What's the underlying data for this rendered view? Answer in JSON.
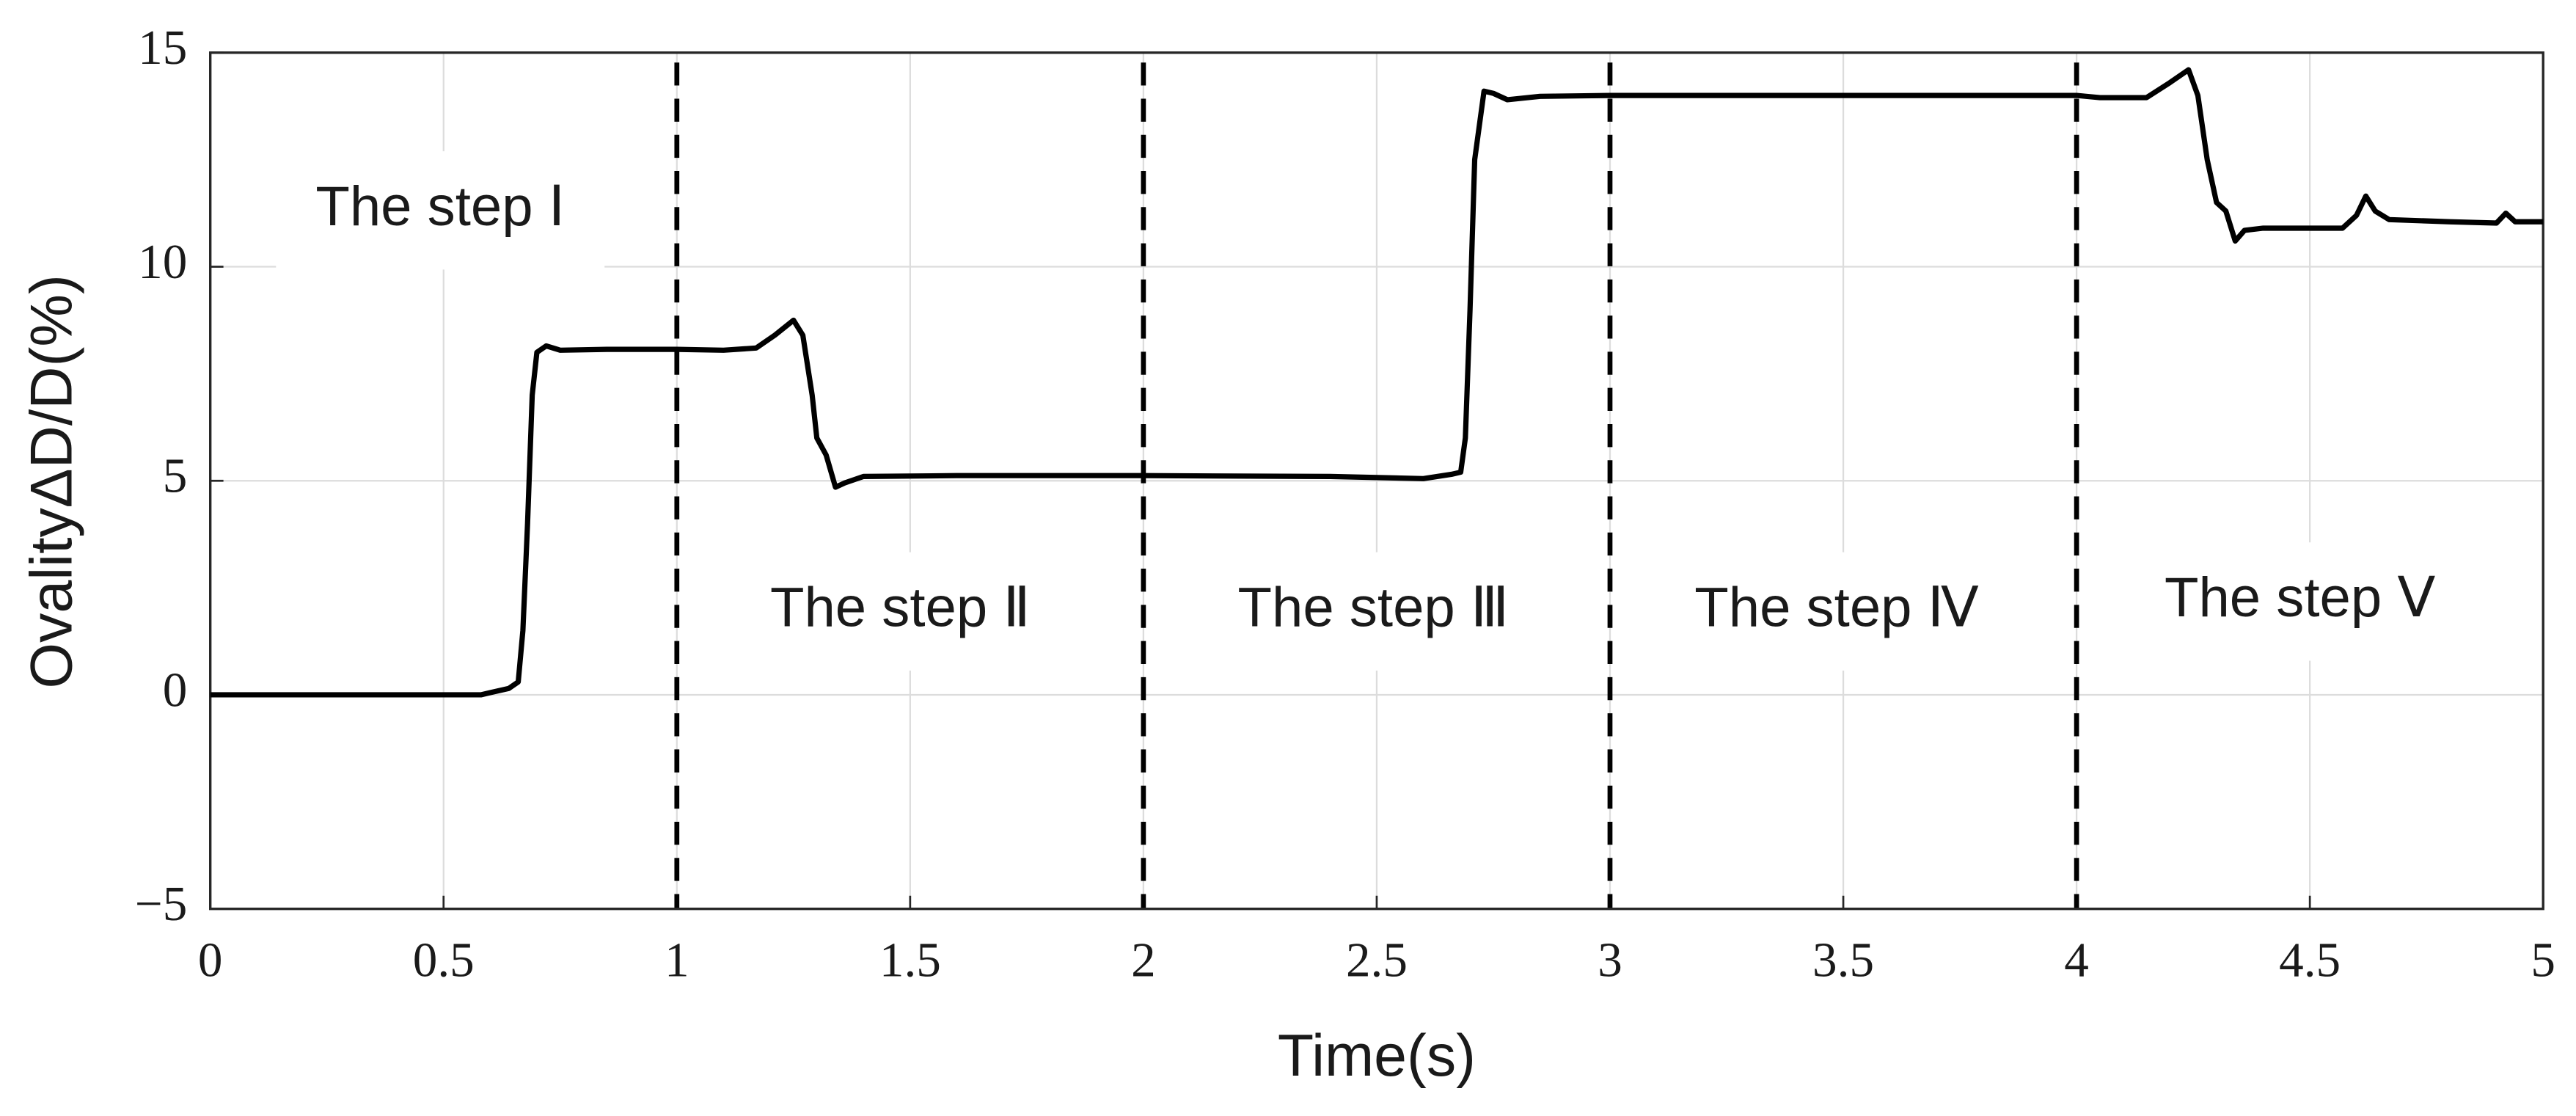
{
  "chart_data": {
    "type": "line",
    "xlabel": "Time(s)",
    "ylabel": "OvalityΔD/D(%)",
    "xlim": [
      0,
      5
    ],
    "ylim": [
      -5,
      15
    ],
    "xticks": [
      0,
      0.5,
      1,
      1.5,
      2,
      2.5,
      3,
      3.5,
      4,
      4.5,
      5
    ],
    "yticks": [
      {
        "value": -5,
        "label": "−5"
      },
      0,
      5,
      10,
      15
    ],
    "grid": true,
    "vlines": [
      1,
      2,
      3,
      4
    ],
    "annotations": [
      "The step Ⅰ",
      "The step Ⅱ",
      "The step Ⅲ",
      "The step Ⅳ",
      "The step Ⅴ"
    ],
    "series": [
      {
        "color": "#000000",
        "x": [
          0,
          0.58,
          0.6,
          0.64,
          0.66,
          0.67,
          0.68,
          0.69,
          0.7,
          0.72,
          0.75,
          0.85,
          1.0,
          1.1,
          1.17,
          1.21,
          1.25,
          1.27,
          1.29,
          1.3,
          1.32,
          1.34,
          1.36,
          1.4,
          1.6,
          2.0,
          2.4,
          2.6,
          2.66,
          2.68,
          2.69,
          2.7,
          2.71,
          2.73,
          2.75,
          2.78,
          2.85,
          3.0,
          4.0,
          4.05,
          4.15,
          4.2,
          4.24,
          4.26,
          4.28,
          4.3,
          4.32,
          4.34,
          4.36,
          4.4,
          4.57,
          4.6,
          4.62,
          4.64,
          4.67,
          4.8,
          4.9,
          4.92,
          4.94,
          5.0
        ],
        "values": [
          0,
          0,
          0.05,
          0.15,
          0.3,
          1.5,
          4,
          7,
          8,
          8.15,
          8.05,
          8.07,
          8.07,
          8.05,
          8.1,
          8.4,
          8.75,
          8.4,
          7,
          6,
          5.6,
          4.85,
          4.95,
          5.1,
          5.12,
          5.12,
          5.1,
          5.05,
          5.15,
          5.2,
          6,
          9,
          12.5,
          14.1,
          14.05,
          13.9,
          13.98,
          14,
          14,
          13.95,
          13.95,
          14.3,
          14.6,
          14,
          12.5,
          11.5,
          11.3,
          10.6,
          10.85,
          10.9,
          10.9,
          11.2,
          11.65,
          11.3,
          11.1,
          11.05,
          11.02,
          11.25,
          11.05,
          11.05
        ]
      }
    ]
  }
}
